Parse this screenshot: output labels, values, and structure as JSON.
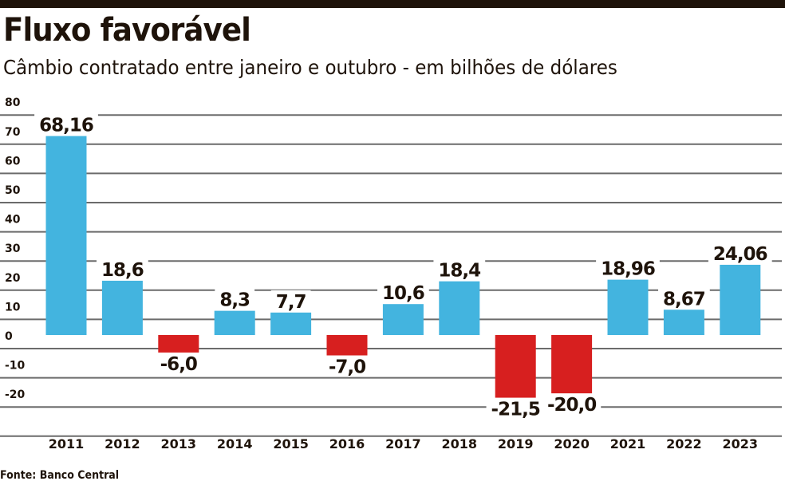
{
  "header": {
    "title": "Fluxo favorável",
    "subtitle": "Câmbio contratado entre janeiro e outubro - em bilhões de dólares"
  },
  "footer": {
    "source": "Fonte: Banco Central"
  },
  "colors": {
    "positive": "#43b4df",
    "negative": "#d71f1f",
    "text": "#1e130a",
    "grid": "#6b6b6b",
    "topbar": "#1e130a"
  },
  "chart_data": {
    "type": "bar",
    "title": "Fluxo favorável",
    "subtitle": "Câmbio contratado entre janeiro e outubro - em bilhões de dólares",
    "xlabel": "",
    "ylabel": "",
    "categories": [
      "2011",
      "2012",
      "2013",
      "2014",
      "2015",
      "2016",
      "2017",
      "2018",
      "2019",
      "2020",
      "2021",
      "2022",
      "2023"
    ],
    "values": [
      68.16,
      18.6,
      -6.0,
      8.3,
      7.7,
      -7.0,
      10.6,
      18.4,
      -21.5,
      -20.0,
      18.96,
      8.67,
      24.06
    ],
    "value_labels": [
      "68,16",
      "18,6",
      "-6,0",
      "8,3",
      "7,7",
      "-7,0",
      "10,6",
      "18,4",
      "-21,5",
      "-20,0",
      "18,96",
      "8,67",
      "24,06"
    ],
    "ylim": [
      -30,
      80
    ],
    "yticks": [
      80,
      70,
      60,
      50,
      40,
      30,
      20,
      10,
      0,
      -10,
      -20
    ],
    "ytick_labels": [
      "80",
      "70",
      "60",
      "50",
      "40",
      "30",
      "20",
      "10",
      "0",
      "-10",
      "-20"
    ],
    "grid": true,
    "legend": "none",
    "source": "Fonte: Banco Central"
  }
}
